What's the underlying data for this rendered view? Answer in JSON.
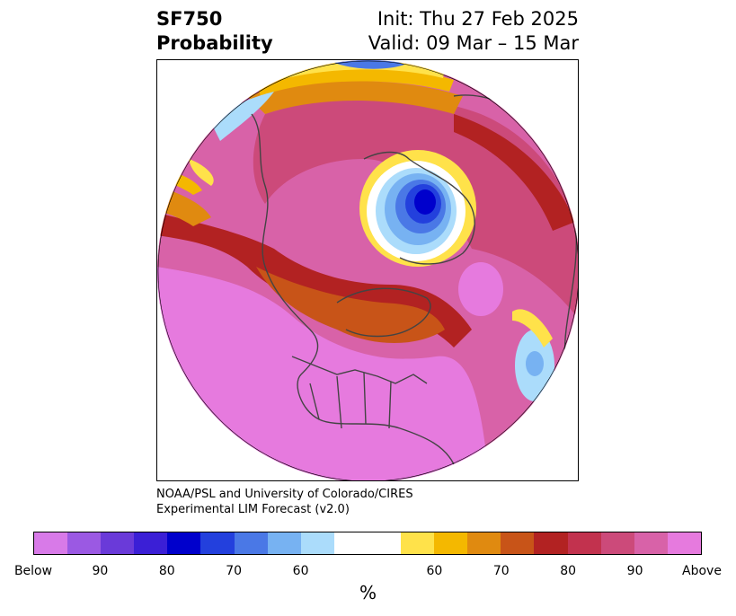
{
  "title": {
    "left_line1": "SF750",
    "left_line2": "Probability",
    "right_line1": "Init: Thu 27 Feb 2025",
    "right_line2": "Valid: 09 Mar – 15 Mar"
  },
  "credit": {
    "line1": "NOAA/PSL and University of Colorado/CIRES",
    "line2": "Experimental LIM Forecast (v2.0)"
  },
  "colorbar": {
    "colors": [
      "#d87ae8",
      "#9b59e3",
      "#6a3ad9",
      "#3b1fd6",
      "#0000cc",
      "#2340dd",
      "#4a78e6",
      "#77b2f2",
      "#abdcfb",
      "#ffffff",
      "#ffffff",
      "#ffe24a",
      "#f4b800",
      "#e08a10",
      "#c85418",
      "#b22222",
      "#c2324e",
      "#cc4a7a",
      "#d862a8",
      "#e67ade"
    ],
    "labels": [
      "Below",
      "90",
      "80",
      "70",
      "60",
      "60",
      "70",
      "80",
      "90",
      "Above"
    ],
    "unit": "%"
  },
  "map": {
    "map_colors": {
      "above_high": "#e67ade",
      "above_90": "#d862a8",
      "above_85": "#cc4a7a",
      "above_80": "#b22222",
      "above_75": "#c85418",
      "above_70": "#e08a10",
      "above_65": "#f4b800",
      "above_60": "#ffe24a",
      "below_60": "#abdcfb",
      "below_65": "#77b2f2",
      "below_70": "#4a78e6",
      "below_75": "#2340dd",
      "below_80": "#0000cc",
      "coastline": "#444444"
    }
  }
}
